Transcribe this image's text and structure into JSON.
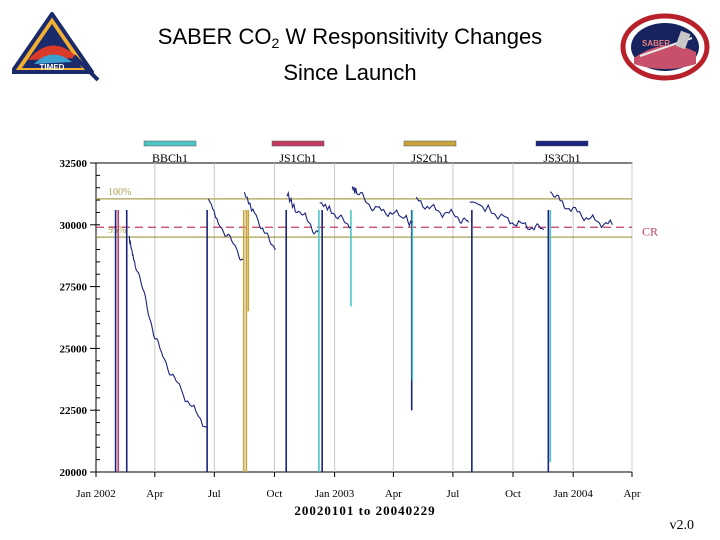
{
  "title": {
    "main": "SABER CO",
    "sub": "2",
    "rest": " W Responsitivity Changes",
    "line2": "Since Launch"
  },
  "logos": {
    "left_text": "TIMED",
    "right_text": "SABER"
  },
  "version": "v2.0",
  "colors": {
    "bb": "#4fc4c4",
    "js1": "#c23b62",
    "js2": "#c8a43c",
    "js3": "#1a237e",
    "ref": "#a8a050",
    "cr": "#c04060",
    "grid": "#c8c8c8"
  },
  "chart_data": {
    "type": "line",
    "title": "SABER CO2 W Responsitivity Changes Since Launch",
    "xlabel": "20020101 to 20040229",
    "ylabel": "",
    "x_unit": "days since 2002-01-01",
    "xlim": [
      0,
      820
    ],
    "ylim": [
      20000,
      32500
    ],
    "yticks": [
      20000,
      22500,
      25000,
      27500,
      30000,
      32500
    ],
    "xticks": [
      {
        "day": 0,
        "label": "Jan 2002"
      },
      {
        "day": 90,
        "label": "Apr"
      },
      {
        "day": 181,
        "label": "Jul"
      },
      {
        "day": 273,
        "label": "Oct"
      },
      {
        "day": 365,
        "label": "Jan 2003"
      },
      {
        "day": 455,
        "label": "Apr"
      },
      {
        "day": 546,
        "label": "Jul"
      },
      {
        "day": 638,
        "label": "Oct"
      },
      {
        "day": 730,
        "label": "Jan 2004"
      },
      {
        "day": 820,
        "label": "Apr"
      }
    ],
    "legend": [
      "BBCh1",
      "JS1Ch1",
      "JS2Ch1",
      "JS3Ch1"
    ],
    "reference_lines": [
      {
        "label": "100%",
        "value": 31050,
        "style": "solid"
      },
      {
        "label": "95%",
        "value": 29500,
        "style": "solid"
      },
      {
        "label": "CR",
        "value": 29900,
        "style": "dashed"
      }
    ],
    "series": [
      {
        "name": "JS3Ch1",
        "segments": [
          {
            "x": [
              50,
              55,
              60,
              70,
              80,
              90,
              100,
              115,
              130,
              150,
              170
            ],
            "y": [
              29500,
              29000,
              28500,
              27500,
              26500,
              25500,
              24800,
              24000,
              23300,
              22500,
              21800
            ]
          },
          {
            "x": [
              172,
              185,
              200,
              215,
              225
            ],
            "y": [
              31000,
              30200,
              29600,
              29000,
              28600
            ]
          },
          {
            "x": [
              227,
              240,
              255,
              265,
              275
            ],
            "y": [
              31200,
              30600,
              29900,
              29300,
              29000
            ]
          },
          {
            "x": [
              292,
              305,
              320,
              330,
              340
            ],
            "y": [
              31200,
              30700,
              30300,
              29900,
              29700
            ]
          },
          {
            "x": [
              342,
              360,
              375,
              390
            ],
            "y": [
              30900,
              30600,
              30200,
              29900
            ]
          },
          {
            "x": [
              392,
              400,
              415,
              430,
              450,
              470,
              484
            ],
            "y": [
              31500,
              31300,
              30900,
              30600,
              30500,
              30300,
              30100
            ]
          },
          {
            "x": [
              490,
              510,
              530,
              550,
              560,
              570
            ],
            "y": [
              31000,
              30700,
              30500,
              30400,
              30200,
              30100
            ]
          },
          {
            "x": [
              572,
              600,
              630,
              650,
              670,
              685
            ],
            "y": [
              31000,
              30600,
              30200,
              30000,
              29900,
              29800
            ]
          },
          {
            "x": [
              695,
              710,
              730,
              750,
              770,
              790
            ],
            "y": [
              31400,
              30900,
              30600,
              30300,
              30100,
              30000
            ]
          }
        ]
      }
    ],
    "dropouts": [
      {
        "series": "JS3Ch1",
        "day": 30,
        "min": 20000
      },
      {
        "series": "JS1Ch1",
        "day": 34,
        "min": 20000
      },
      {
        "series": "JS3Ch1",
        "day": 47,
        "min": 20000
      },
      {
        "series": "JS3Ch1",
        "day": 170,
        "min": 20000
      },
      {
        "series": "JS2Ch1",
        "day": 226,
        "min": 20000
      },
      {
        "series": "JS2Ch1",
        "day": 230,
        "min": 20000
      },
      {
        "series": "JS2Ch1",
        "day": 233,
        "min": 26500
      },
      {
        "series": "JS3Ch1",
        "day": 291,
        "min": 20000
      },
      {
        "series": "BBCh1",
        "day": 341,
        "min": 20000
      },
      {
        "series": "JS3Ch1",
        "day": 346,
        "min": 20000
      },
      {
        "series": "BBCh1",
        "day": 390,
        "min": 26700
      },
      {
        "series": "JS3Ch1",
        "day": 483,
        "min": 22500
      },
      {
        "series": "BBCh1",
        "day": 484,
        "min": 23700
      },
      {
        "series": "JS3Ch1",
        "day": 575,
        "min": 20000
      },
      {
        "series": "JS3Ch1",
        "day": 692,
        "min": 20000
      },
      {
        "series": "BBCh1",
        "day": 695,
        "min": 20400
      }
    ]
  }
}
